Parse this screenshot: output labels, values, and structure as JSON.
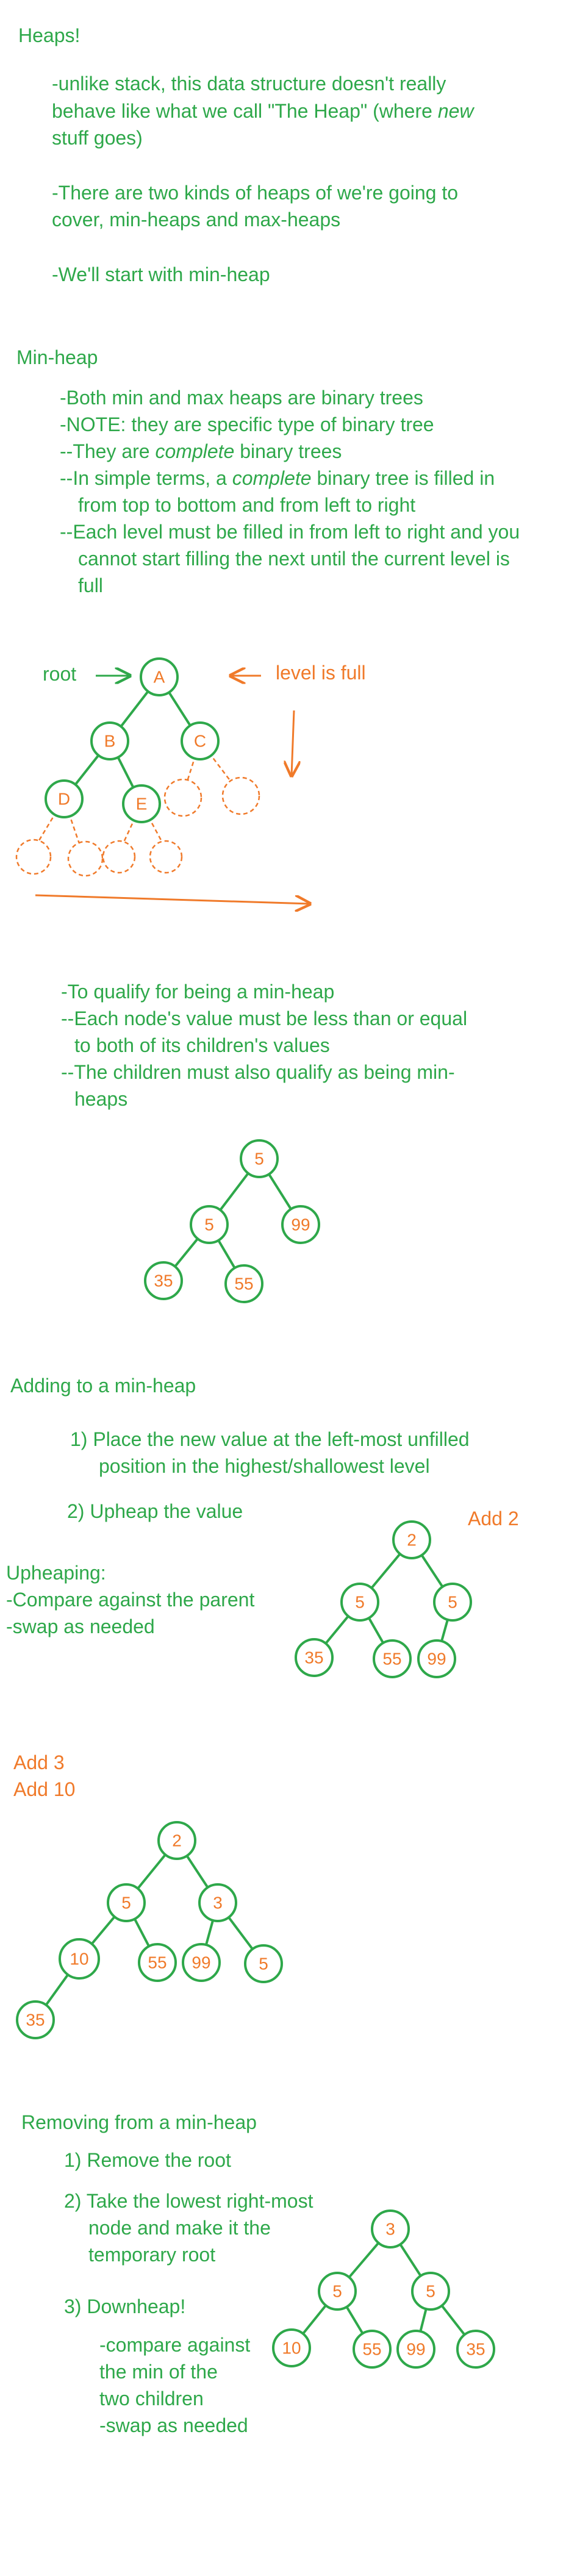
{
  "colors": {
    "green": "#2ea84a",
    "orange": "#f07a2a"
  },
  "intro": {
    "title": "Heaps!",
    "lines": [
      "-unlike stack, this data structure doesn't really",
      "behave like what we call \"The Heap\" (where ",
      "new",
      "stuff goes)",
      "-There are two kinds of heaps of we're going to",
      "cover, min-heaps and max-heaps",
      "-We'll start with min-heap"
    ]
  },
  "minheap": {
    "title": "Min-heap",
    "lines": [
      "-Both min and max heaps are binary trees",
      "-NOTE: they are specific type of binary tree",
      "--They are ",
      "complete",
      " binary trees",
      "--In simple terms, a ",
      "complete",
      " binary tree is filled in",
      "from top to bottom and from left to right",
      "--Each level must be filled in from left to right and you",
      "cannot start filling the next until the current level is",
      "full"
    ]
  },
  "tree_diagram": {
    "root_label": "root",
    "level_label": "level is full",
    "nodes": [
      "A",
      "B",
      "C",
      "D",
      "E"
    ]
  },
  "qualify": {
    "lines": [
      "-To qualify for being a min-heap",
      "--Each node's value must be less than or equal",
      "to both of its children's values",
      "--The children must also qualify as being min-",
      "heaps"
    ]
  },
  "heap1": {
    "nodes": [
      "5",
      "5",
      "99",
      "35",
      "55"
    ]
  },
  "adding": {
    "title": "Adding to a min-heap",
    "step1a": "1) Place the new value at the left-most unfilled",
    "step1b": "position in the highest/shallowest level",
    "step2": "2) Upheap the value",
    "upheap_title": "Upheaping:",
    "upheap_lines": [
      "-Compare against the parent",
      "-swap as needed"
    ],
    "note": "Add 2"
  },
  "heap2": {
    "nodes": [
      "2",
      "5",
      "5",
      "35",
      "55",
      "99"
    ]
  },
  "add_notes": [
    "Add 3",
    "Add 10"
  ],
  "heap3": {
    "nodes": [
      "2",
      "5",
      "3",
      "10",
      "55",
      "99",
      "5",
      "35"
    ]
  },
  "removing": {
    "title": "Removing from a min-heap",
    "step1": "1) Remove the root",
    "step2_lines": [
      "2) Take the lowest right-most",
      "node and make it the",
      "temporary root"
    ],
    "step3": "3) Downheap!",
    "step3_lines": [
      "-compare against",
      "the min of the",
      "two children",
      "-swap as needed"
    ]
  },
  "heap4": {
    "nodes": [
      "3",
      "5",
      "5",
      "10",
      "55",
      "99",
      "35"
    ]
  }
}
